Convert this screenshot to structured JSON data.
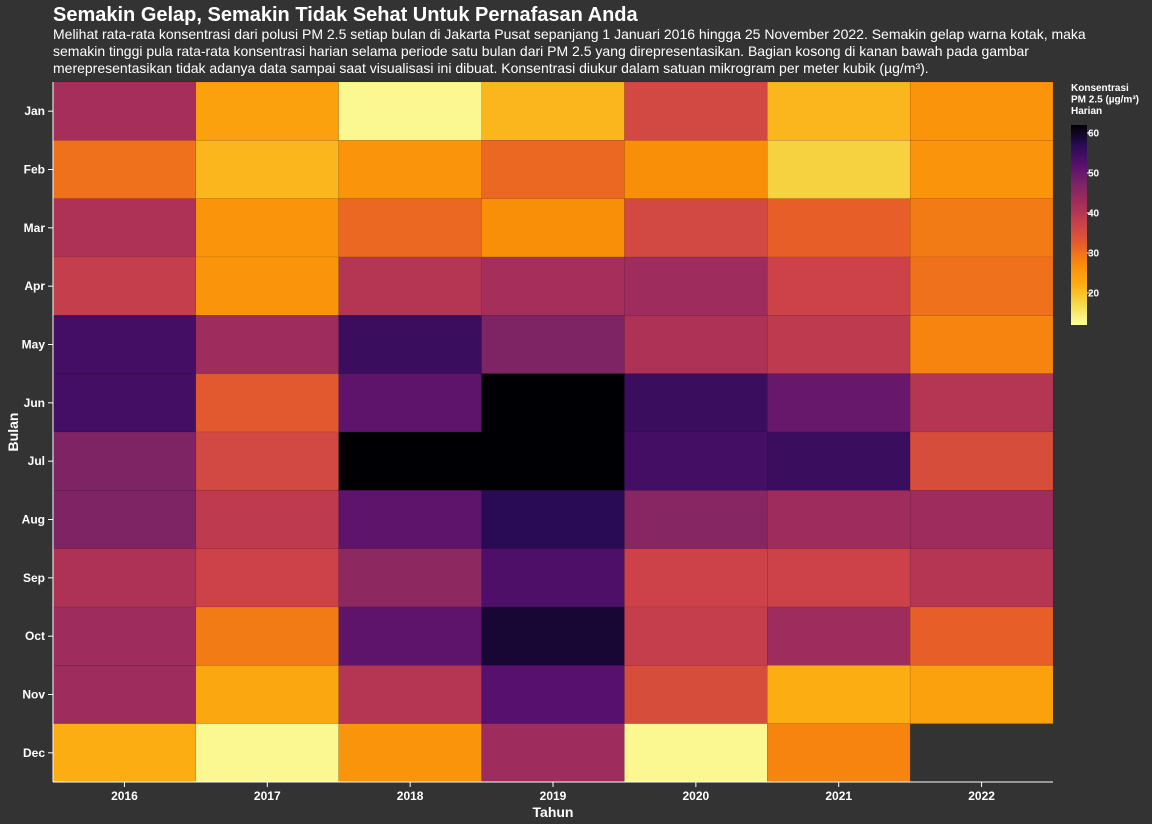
{
  "chart_data": {
    "type": "heatmap",
    "title": "Semakin Gelap, Semakin Tidak Sehat Untuk Pernafasan Anda",
    "subtitle": "Melihat rata-rata konsentrasi dari polusi PM 2.5 setiap bulan di Jakarta Pusat sepanjang 1 Januari 2016 hingga 25 November 2022. Semakin gelap warna kotak, maka semakin tinggi pula rata-rata konsentrasi harian selama periode satu bulan dari PM 2.5 yang direpresentasikan. Bagian kosong di kanan bawah pada gambar merepresentasikan tidak adanya data sampai saat visualisasi ini dibuat. Konsentrasi diukur dalam satuan mikrogram per meter kubik (µg/m³).",
    "xlabel": "Tahun",
    "ylabel": "Bulan",
    "x": [
      "2016",
      "2017",
      "2018",
      "2019",
      "2020",
      "2021",
      "2022"
    ],
    "y": [
      "Jan",
      "Feb",
      "Mar",
      "Apr",
      "May",
      "Jun",
      "Jul",
      "Aug",
      "Sep",
      "Oct",
      "Nov",
      "Dec"
    ],
    "values": [
      [
        42,
        24,
        13,
        21,
        36,
        21,
        26
      ],
      [
        30,
        21,
        26,
        31,
        27,
        18,
        26
      ],
      [
        41,
        26,
        31,
        27,
        36,
        32,
        29
      ],
      [
        38,
        26,
        40,
        42,
        43,
        37,
        30
      ],
      [
        54,
        43,
        55,
        47,
        41,
        39,
        28
      ],
      [
        54,
        33,
        51,
        62,
        55,
        50,
        40
      ],
      [
        47,
        36,
        64,
        62,
        54,
        55,
        35
      ],
      [
        47,
        39,
        51,
        57,
        46,
        43,
        43
      ],
      [
        41,
        37,
        45,
        53,
        37,
        37,
        40
      ],
      [
        43,
        29,
        51,
        59,
        38,
        43,
        32
      ],
      [
        43,
        23,
        40,
        52,
        35,
        22,
        24
      ],
      [
        22,
        13,
        26,
        43,
        13,
        28,
        null
      ]
    ],
    "legend": {
      "title": [
        "Konsentrasi",
        "PM 2.5 (µg/m³)",
        "Harian"
      ],
      "ticks": [
        20,
        30,
        40,
        50,
        60
      ],
      "domain": [
        12,
        62
      ],
      "placement": "right"
    },
    "colormap": "inferno",
    "grid": false
  }
}
